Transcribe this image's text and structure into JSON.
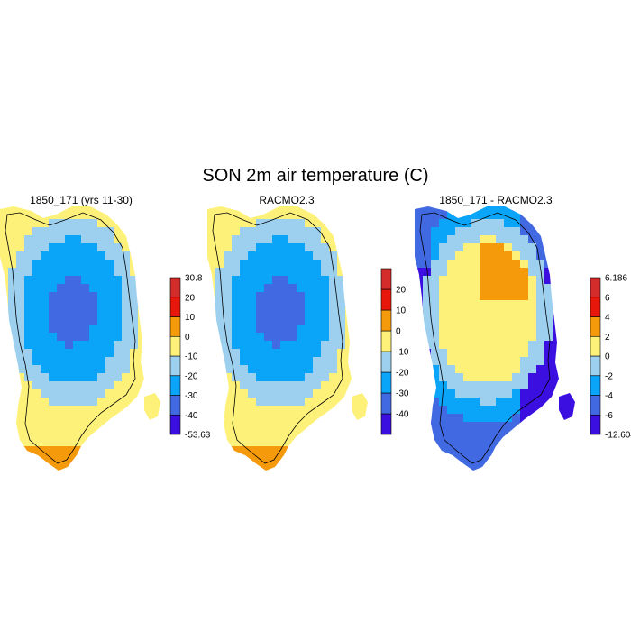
{
  "title": "SON 2m air temperature (C)",
  "panels": [
    {
      "title": "1850_171 (yrs 11-30)",
      "colorbar": {
        "colors": [
          "#3b0fe0",
          "#4169e1",
          "#0aa4f8",
          "#9cd0ee",
          "#fdf17a",
          "#f59a0a",
          "#e8170c",
          "#d42b2b"
        ],
        "labels": [
          "-53.63",
          "-40",
          "-30",
          "-20",
          "-10",
          "0",
          "10",
          "20",
          "30.8"
        ]
      }
    },
    {
      "title": "RACMO2.3",
      "colorbar": {
        "colors": [
          "#3b0fe0",
          "#4169e1",
          "#0aa4f8",
          "#9cd0ee",
          "#fdf17a",
          "#f59a0a",
          "#e8170c",
          "#d42b2b"
        ],
        "labels": [
          "-40",
          "-30",
          "-20",
          "-10",
          "0",
          "10",
          "20"
        ]
      }
    },
    {
      "title": "1850_171 - RACMO2.3",
      "colorbar": {
        "colors": [
          "#3b0fe0",
          "#4169e1",
          "#0aa4f8",
          "#9cd0ee",
          "#fdf17a",
          "#f59a0a",
          "#e8170c",
          "#d42b2b"
        ],
        "labels": [
          "-12.604",
          "-6",
          "-4",
          "-2",
          "0",
          "2",
          "4",
          "6",
          "6.186"
        ]
      }
    }
  ]
}
